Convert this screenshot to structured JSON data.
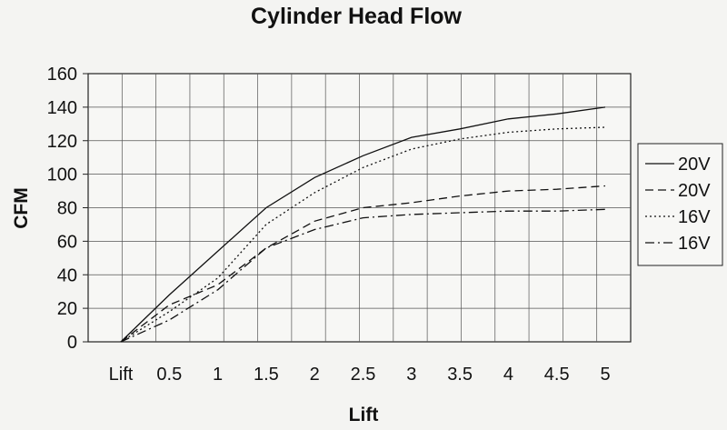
{
  "chart_data": {
    "type": "line",
    "title": "Cylinder Head Flow",
    "xlabel": "Lift",
    "ylabel": "CFM",
    "categories": [
      "Lift",
      "0.5",
      "1",
      "1.5",
      "2",
      "2.5",
      "3",
      "3.5",
      "4",
      "4.5",
      "5"
    ],
    "ylim": [
      0,
      160
    ],
    "yticks": [
      0,
      20,
      40,
      60,
      80,
      100,
      120,
      140,
      160
    ],
    "grid": true,
    "legend_position": "right",
    "series": [
      {
        "name": "20V",
        "dash": "solid",
        "color": "#111111",
        "values": [
          0,
          28,
          54,
          80,
          98,
          111,
          122,
          127,
          133,
          136,
          140
        ]
      },
      {
        "name": "20V",
        "dash": "dashed",
        "color": "#111111",
        "values": [
          0,
          22,
          34,
          56,
          72,
          80,
          83,
          87,
          90,
          91,
          93
        ]
      },
      {
        "name": "16V",
        "dash": "dotted",
        "color": "#111111",
        "values": [
          0,
          18,
          38,
          70,
          89,
          104,
          115,
          121,
          125,
          127,
          128
        ]
      },
      {
        "name": "16V",
        "dash": "dashdot",
        "color": "#111111",
        "values": [
          0,
          13,
          31,
          56,
          67,
          74,
          76,
          77,
          78,
          78,
          79
        ]
      }
    ]
  }
}
